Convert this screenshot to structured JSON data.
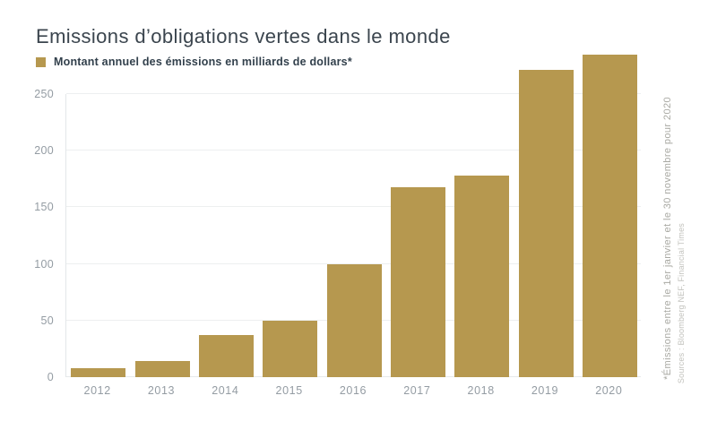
{
  "header": {
    "title": "Emissions d’obligations vertes dans le monde"
  },
  "legend": {
    "label": "Montant annuel des émissions en milliards de dollars*"
  },
  "chart_data": {
    "type": "bar",
    "title": "Emissions d’obligations vertes dans le monde",
    "legend_entries": [
      "Montant annuel des émissions en milliards de dollars*"
    ],
    "legend_position": "top-left",
    "categories": [
      "2012",
      "2013",
      "2014",
      "2015",
      "2016",
      "2017",
      "2018",
      "2019",
      "2020"
    ],
    "values": [
      8,
      14,
      37,
      50,
      100,
      168,
      178,
      271,
      285
    ],
    "unit": "milliards de dollars",
    "xlabel": "",
    "ylabel": "",
    "yticks": [
      0,
      50,
      100,
      150,
      200,
      250
    ],
    "ylim": [
      0,
      250
    ],
    "grid": "horizontal"
  },
  "footnote": {
    "text": "*Émissions entre le 1er janvier et le 30 novembre pour 2020",
    "sources": "Sources : Bloomberg NEF, Financial Times"
  },
  "colors": {
    "bar": "#b6984f",
    "title_text": "#3b454e",
    "legend_text": "#32404c",
    "axis_text": "#949ca3",
    "gridline": "#edeff0",
    "axis_line": "#e3e7e9",
    "note_text": "#a9a9a3",
    "sources_text": "#c3c3be",
    "background": "#ffffff"
  }
}
